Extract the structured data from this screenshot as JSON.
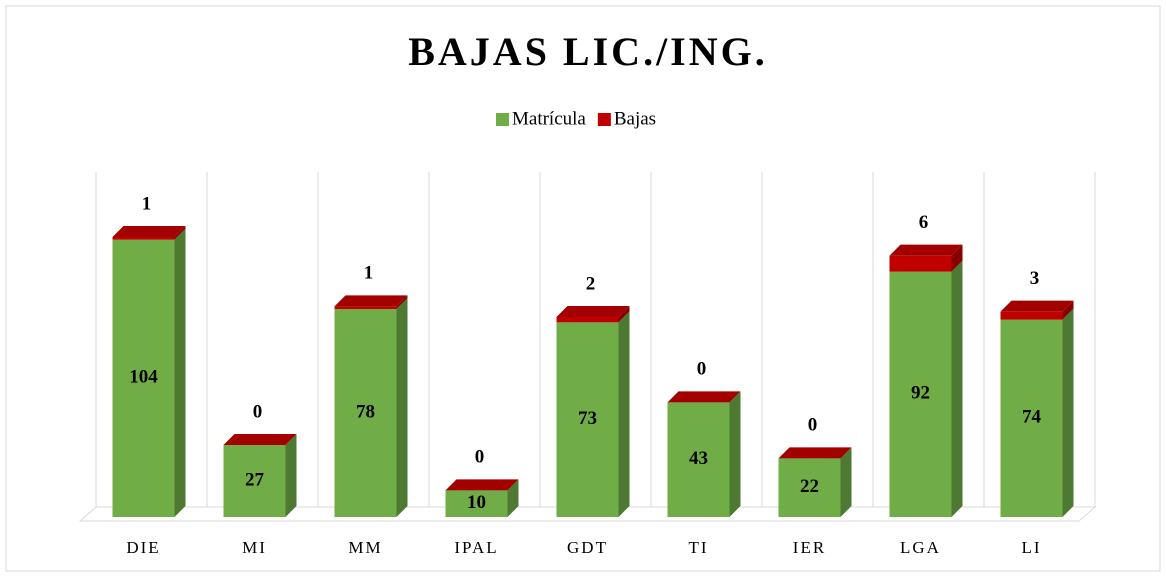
{
  "chart_data": {
    "type": "bar",
    "stacked": true,
    "title": "BAJAS LIC./ING.",
    "categories": [
      "DIE",
      "MI",
      "MM",
      "IPAL",
      "GDT",
      "TI",
      "IER",
      "LGA",
      "LI"
    ],
    "series": [
      {
        "name": "Matrícula",
        "color": "#70ad47",
        "values": [
          104,
          27,
          78,
          10,
          73,
          43,
          22,
          92,
          74
        ]
      },
      {
        "name": "Bajas",
        "color": "#c00000",
        "values": [
          1,
          0,
          1,
          0,
          2,
          0,
          0,
          6,
          3
        ]
      }
    ],
    "legend": "top"
  }
}
